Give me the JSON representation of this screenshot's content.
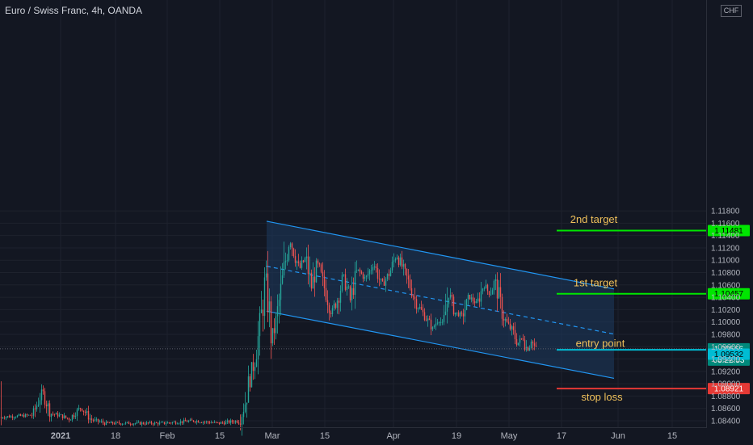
{
  "header": {
    "symbol_title": "Euro / Swiss Franc, 4h, OANDA",
    "currency": "CHF"
  },
  "colors": {
    "background": "#131722",
    "up_candle": "#26a69a",
    "down_candle": "#ef5350",
    "channel_line": "#2196f3",
    "channel_fill": "#1e3a5f",
    "target_line": "#00e600",
    "entry_line": "#00bcd4",
    "stop_line": "#e53935",
    "annotation_text": "#f0c15b",
    "axis_text": "#b2b5be"
  },
  "chart_data": {
    "type": "candlestick",
    "instrument": "EUR/CHF",
    "interval": "4h",
    "y_axis": {
      "ylim": [
        1.0836,
        1.1182
      ],
      "ticks": [
        "1.08400",
        "1.08600",
        "1.08800",
        "1.09000",
        "1.09200",
        "1.09400",
        "1.09600",
        "1.09800",
        "1.10000",
        "1.10200",
        "1.10400",
        "1.10600",
        "1.10800",
        "1.11000",
        "1.11200",
        "1.11400",
        "1.11600",
        "1.11800"
      ]
    },
    "x_axis": {
      "tick_labels": [
        "2021",
        "18",
        "Feb",
        "15",
        "Mar",
        "15",
        "Apr",
        "19",
        "May",
        "17",
        "Jun",
        "15"
      ]
    },
    "price_path": [
      [
        0,
        1.0846
      ],
      [
        40,
        1.0849
      ],
      [
        52,
        1.0888
      ],
      [
        62,
        1.0852
      ],
      [
        75,
        1.0848
      ],
      [
        85,
        1.0843
      ],
      [
        100,
        1.0862
      ],
      [
        112,
        1.0842
      ],
      [
        130,
        1.0836
      ],
      [
        160,
        1.0836
      ],
      [
        200,
        1.0836
      ],
      [
        240,
        1.084
      ],
      [
        270,
        1.0836
      ],
      [
        296,
        1.084
      ],
      [
        303,
        1.087
      ],
      [
        308,
        1.0905
      ],
      [
        314,
        1.0935
      ],
      [
        318,
        1.0965
      ],
      [
        323,
        1.101
      ],
      [
        328,
        1.1075
      ],
      [
        331,
        1.104
      ],
      [
        335,
        1.0975
      ],
      [
        340,
        1.099
      ],
      [
        347,
        1.105
      ],
      [
        353,
        1.11
      ],
      [
        358,
        1.1135
      ],
      [
        363,
        1.1115
      ],
      [
        370,
        1.1085
      ],
      [
        378,
        1.1105
      ],
      [
        385,
        1.1055
      ],
      [
        392,
        1.1095
      ],
      [
        400,
        1.106
      ],
      [
        410,
        1.1015
      ],
      [
        418,
        1.104
      ],
      [
        425,
        1.1075
      ],
      [
        433,
        1.1035
      ],
      [
        442,
        1.1085
      ],
      [
        452,
        1.107
      ],
      [
        462,
        1.1095
      ],
      [
        472,
        1.106
      ],
      [
        482,
        1.108
      ],
      [
        490,
        1.111
      ],
      [
        497,
        1.109
      ],
      [
        505,
        1.1065
      ],
      [
        515,
        1.103
      ],
      [
        525,
        1.101
      ],
      [
        535,
        1.099
      ],
      [
        542,
        1.1005
      ],
      [
        548,
        1.0995
      ],
      [
        555,
        1.1045
      ],
      [
        563,
        1.1015
      ],
      [
        572,
        1.101
      ],
      [
        580,
        1.104
      ],
      [
        590,
        1.103
      ],
      [
        598,
        1.106
      ],
      [
        606,
        1.1045
      ],
      [
        612,
        1.1068
      ],
      [
        617,
        1.104
      ],
      [
        622,
        1.101
      ],
      [
        628,
        1.0995
      ],
      [
        634,
        1.0985
      ],
      [
        640,
        1.0965
      ],
      [
        647,
        1.0975
      ],
      [
        652,
        1.0955
      ],
      [
        657,
        1.097
      ],
      [
        662,
        1.0958
      ],
      [
        664,
        1.0957
      ]
    ],
    "last_price": "1.09566",
    "bar_countdown": "03:22:53",
    "secondary_price": "1.09532",
    "levels": [
      {
        "name": "2nd target",
        "price": 1.11481,
        "label": "1.11481",
        "color": "#00e600"
      },
      {
        "name": "1st target",
        "price": 1.10457,
        "label": "1.10457",
        "color": "#00e600"
      },
      {
        "name": "entry point",
        "price": 1.0955,
        "color": "#00bcd4"
      },
      {
        "name": "stop loss",
        "price": 1.08921,
        "label": "1.08921",
        "color": "#e53935"
      }
    ],
    "channel": {
      "upper": [
        [
          330,
          1.11632
        ],
        [
          760,
          1.10535
        ]
      ],
      "lower": [
        [
          330,
          1.10175
        ],
        [
          760,
          1.09088
        ]
      ],
      "mid": [
        [
          330,
          1.10903
        ],
        [
          760,
          1.09804
        ]
      ]
    },
    "annotations": [
      {
        "text": "2nd target",
        "x": 735,
        "price": 1.11657
      },
      {
        "text": "1st target",
        "x": 737,
        "price": 1.10628
      },
      {
        "text": "entry point",
        "x": 743,
        "price": 1.09646
      },
      {
        "text": "stop loss",
        "x": 745,
        "price": 1.0878
      }
    ]
  }
}
